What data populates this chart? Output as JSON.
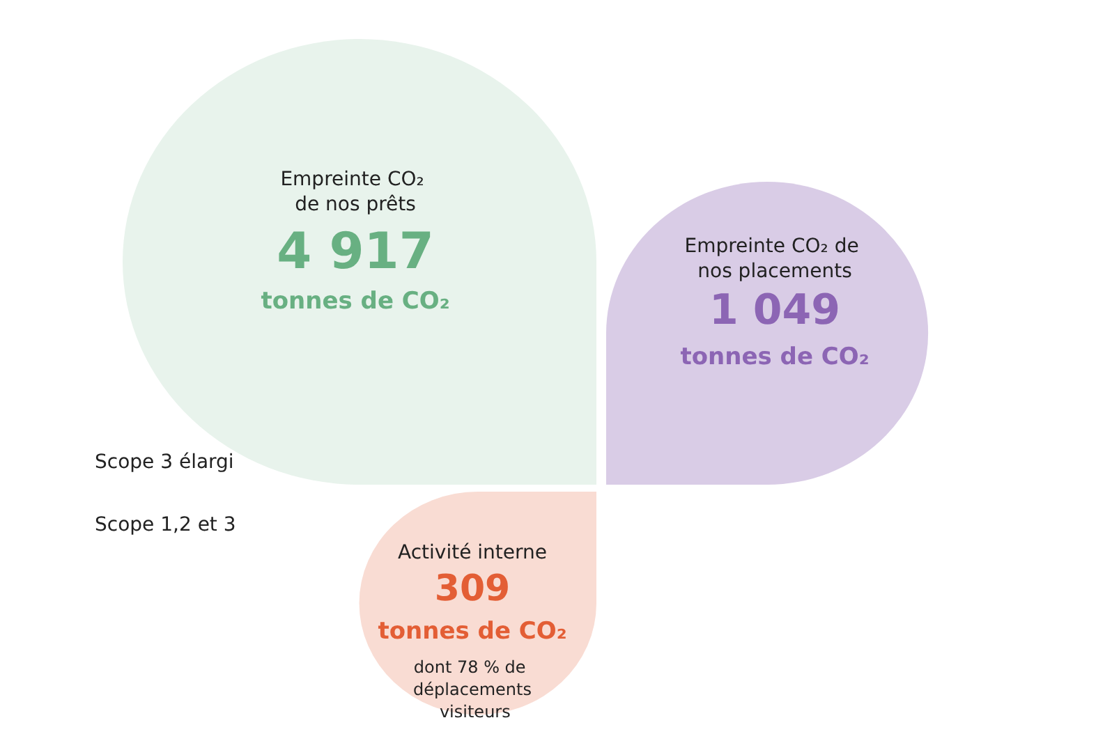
{
  "chart_data": {
    "type": "other",
    "categories": [
      "Empreinte CO₂ de nos prêts",
      "Empreinte CO₂ de nos placements",
      "Activité interne"
    ],
    "values": [
      4917,
      1049,
      309
    ],
    "value_labels": [
      "4 917",
      "1 049",
      "309"
    ],
    "colors": [
      "#e8f3ec",
      "#d9cce6",
      "#f9dcd3"
    ],
    "ylabel": "tonnes de CO₂",
    "annotations": [
      "dont 78 % de déplacements visiteurs",
      "Scope 3 élargi",
      "Scope 1,2 et 3"
    ]
  }
}
